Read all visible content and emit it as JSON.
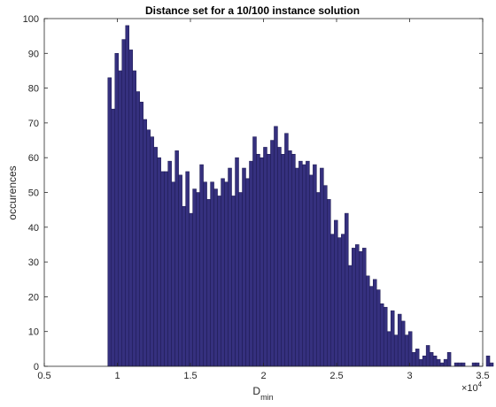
{
  "chart_data": {
    "type": "bar",
    "title": "Distance set for a 10/100 instance solution",
    "xlabel": "D",
    "xlabel_subscript": "min",
    "ylabel": "occurences",
    "x_multiplier": "×10",
    "x_multiplier_exponent": "4",
    "xlim": [
      0.5,
      3.5
    ],
    "ylim": [
      0,
      100
    ],
    "xticks": [
      0.5,
      1,
      1.5,
      2,
      2.5,
      3,
      3.5
    ],
    "xtick_labels": [
      "0.5",
      "1",
      "1.5",
      "2",
      "2.5",
      "3",
      "3.5"
    ],
    "yticks": [
      0,
      10,
      20,
      30,
      40,
      50,
      60,
      70,
      80,
      90,
      100
    ],
    "ytick_labels": [
      "0",
      "10",
      "20",
      "30",
      "40",
      "50",
      "60",
      "70",
      "80",
      "90",
      "100"
    ],
    "bin_start": 0.935,
    "bin_width": 0.0242,
    "values": [
      83,
      74,
      90,
      85,
      94,
      98,
      91,
      85,
      79,
      76,
      71,
      68,
      66,
      63,
      60,
      56,
      56,
      59,
      53,
      62,
      55,
      46,
      56,
      44,
      51,
      50,
      58,
      53,
      48,
      53,
      51,
      49,
      54,
      53,
      57,
      49,
      60,
      50,
      57,
      54,
      59,
      66,
      61,
      60,
      63,
      61,
      65,
      69,
      63,
      61,
      67,
      62,
      61,
      57,
      59,
      58,
      59,
      55,
      58,
      50,
      57,
      52,
      48,
      38,
      42,
      37,
      38,
      44,
      29,
      34,
      35,
      33,
      34,
      26,
      23,
      25,
      22,
      18,
      17,
      10,
      16,
      9,
      15,
      13,
      9,
      10,
      4,
      5,
      2,
      3,
      6,
      4,
      3,
      2,
      1,
      2,
      4,
      0,
      1,
      1,
      1,
      0,
      0,
      1,
      1,
      0,
      0,
      3,
      1,
      0,
      0,
      0,
      0,
      0,
      1,
      1,
      0
    ],
    "colors": {
      "bar_fill": "#35307e",
      "bar_edge": "#1c1950",
      "axis": "#262626"
    },
    "grid": false
  }
}
